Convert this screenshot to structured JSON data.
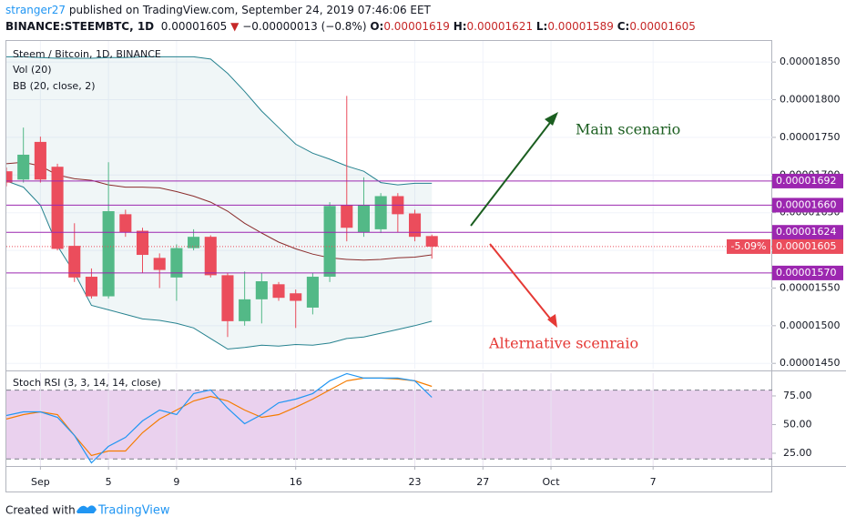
{
  "header": {
    "author": "stranger27",
    "published": " published on TradingView.com, September 24, 2019 07:46:06 EET",
    "symbol": "BINANCE:STEEMBTC, 1D",
    "price": "0.00001605",
    "arrow": "▼",
    "change": "−0.00000013 (−0.8%)",
    "o_label": "O:",
    "o": "0.00001619",
    "h_label": "H:",
    "h": "0.00001621",
    "l_label": "L:",
    "l": "0.00001589",
    "c_label": "C:",
    "c": "0.00001605"
  },
  "chart_data": [
    {
      "type": "candlestick",
      "title": "Steem / Bitcoin, 1D, BINANCE",
      "indicators": [
        "Vol (20)",
        "BB (20, close, 2)"
      ],
      "x": [
        "2019-08-30",
        "2019-08-31",
        "2019-09-01",
        "2019-09-02",
        "2019-09-03",
        "2019-09-04",
        "2019-09-05",
        "2019-09-06",
        "2019-09-07",
        "2019-09-08",
        "2019-09-09",
        "2019-09-10",
        "2019-09-11",
        "2019-09-12",
        "2019-09-13",
        "2019-09-14",
        "2019-09-15",
        "2019-09-16",
        "2019-09-17",
        "2019-09-18",
        "2019-09-19",
        "2019-09-20",
        "2019-09-21",
        "2019-09-22",
        "2019-09-23",
        "2019-09-24"
      ],
      "open": [
        1.705e-05,
        1.694e-05,
        1.744e-05,
        1.711e-05,
        1.606e-05,
        1.565e-05,
        1.539e-05,
        1.648e-05,
        1.626e-05,
        1.59e-05,
        1.564e-05,
        1.603e-05,
        1.618e-05,
        1.567e-05,
        1.506e-05,
        1.535e-05,
        1.555e-05,
        1.543e-05,
        1.524e-05,
        1.565e-05,
        1.66e-05,
        1.624e-05,
        1.628e-05,
        1.672e-05,
        1.649e-05,
        1.619e-05
      ],
      "high": [
        1.71e-05,
        1.763e-05,
        1.751e-05,
        1.715e-05,
        1.636e-05,
        1.576e-05,
        1.717e-05,
        1.654e-05,
        1.63e-05,
        1.596e-05,
        1.608e-05,
        1.628e-05,
        1.62e-05,
        1.57e-05,
        1.572e-05,
        1.57e-05,
        1.558e-05,
        1.548e-05,
        1.57e-05,
        1.664e-05,
        1.805e-05,
        1.697e-05,
        1.676e-05,
        1.676e-05,
        1.654e-05,
        1.621e-05
      ],
      "low": [
        1.685e-05,
        1.69e-05,
        1.69e-05,
        1.6e-05,
        1.558e-05,
        1.536e-05,
        1.536e-05,
        1.618e-05,
        1.57e-05,
        1.55e-05,
        1.533e-05,
        1.6e-05,
        1.564e-05,
        1.485e-05,
        1.5e-05,
        1.503e-05,
        1.533e-05,
        1.497e-05,
        1.515e-05,
        1.558e-05,
        1.612e-05,
        1.618e-05,
        1.623e-05,
        1.624e-05,
        1.612e-05,
        1.589e-05
      ],
      "close": [
        1.69e-05,
        1.727e-05,
        1.694e-05,
        1.602e-05,
        1.564e-05,
        1.539e-05,
        1.652e-05,
        1.624e-05,
        1.594e-05,
        1.574e-05,
        1.603e-05,
        1.618e-05,
        1.567e-05,
        1.506e-05,
        1.535e-05,
        1.559e-05,
        1.537e-05,
        1.533e-05,
        1.565e-05,
        1.659e-05,
        1.63e-05,
        1.66e-05,
        1.672e-05,
        1.648e-05,
        1.618e-05,
        1.605e-05
      ],
      "up_color": "#53b987",
      "down_color": "#eb4d5c",
      "overlays": [
        {
          "color": "#26828f",
          "values": [
            1.857e-05,
            1.857e-05,
            1.856e-05,
            1.855e-05,
            1.855e-05,
            1.855e-05,
            1.856e-05,
            1.856e-05,
            1.857e-05,
            1.857e-05,
            1.857e-05,
            1.857e-05,
            1.854e-05,
            1.835e-05,
            1.811e-05,
            1.785e-05,
            1.763e-05,
            1.741e-05,
            1.729e-05,
            1.721e-05,
            1.712e-05,
            1.705e-05,
            1.69e-05,
            1.687e-05,
            1.689e-05,
            1.689e-05
          ]
        },
        {
          "color": "#8b2d2d",
          "values": [
            1.715e-05,
            1.717e-05,
            1.712e-05,
            1.7e-05,
            1.695e-05,
            1.693e-05,
            1.687e-05,
            1.684e-05,
            1.684e-05,
            1.683e-05,
            1.678e-05,
            1.672e-05,
            1.664e-05,
            1.652e-05,
            1.636e-05,
            1.623e-05,
            1.611e-05,
            1.602e-05,
            1.595e-05,
            1.59e-05,
            1.588e-05,
            1.587e-05,
            1.588e-05,
            1.59e-05,
            1.591e-05,
            1.594e-05
          ]
        },
        {
          "color": "#26828f",
          "values": [
            1.692e-05,
            1.684e-05,
            1.66e-05,
            1.606e-05,
            1.57e-05,
            1.527e-05,
            1.521e-05,
            1.515e-05,
            1.509e-05,
            1.507e-05,
            1.503e-05,
            1.497e-05,
            1.483e-05,
            1.469e-05,
            1.471e-05,
            1.474e-05,
            1.473e-05,
            1.475e-05,
            1.474e-05,
            1.477e-05,
            1.483e-05,
            1.485e-05,
            1.49e-05,
            1.495e-05,
            1.5e-05,
            1.506e-05
          ]
        }
      ],
      "levels": [
        1.692e-05,
        {
          "value": 1.66e-05,
          "label": "0.00001660"
        },
        1.624e-05,
        {
          "value": 1.57e-05,
          "label": "0.00001570"
        }
      ],
      "level_color": "#9c27b0",
      "last": {
        "value": 1.605e-05,
        "change": "-5.09%",
        "color": "#eb4d5c"
      },
      "annotations": [
        {
          "text": "Main scenario",
          "color": "#1b5e20"
        },
        {
          "text": "Alternative scenraio",
          "color": "#e53935"
        }
      ],
      "xlim": [
        "2019-08-30",
        "2019-10-14"
      ],
      "ylim": [
        1.443e-05,
        1.878e-05
      ],
      "yticks": [
        {
          "value": 1.85e-05,
          "label": "0.00001850"
        },
        {
          "value": 1.8e-05,
          "label": "0.00001800"
        },
        {
          "value": 1.75e-05,
          "label": "0.00001750"
        },
        {
          "value": 1.7e-05,
          "label": "0.00001700"
        },
        {
          "value": 1.65e-05,
          "label": "0.00001650"
        },
        {
          "value": 1.6e-05,
          "label": "0.00001600"
        },
        {
          "value": 1.55e-05,
          "label": "0.00001550"
        },
        {
          "value": 1.5e-05,
          "label": "0.00001500"
        },
        {
          "value": 1.45e-05,
          "label": "0.00001450"
        }
      ],
      "grid": true
    },
    {
      "type": "line",
      "title": "Stoch RSI (3, 3, 14, 14, close)",
      "x": [
        "2019-08-30",
        "2019-08-31",
        "2019-09-01",
        "2019-09-02",
        "2019-09-03",
        "2019-09-04",
        "2019-09-05",
        "2019-09-06",
        "2019-09-07",
        "2019-09-08",
        "2019-09-09",
        "2019-09-10",
        "2019-09-11",
        "2019-09-12",
        "2019-09-13",
        "2019-09-14",
        "2019-09-15",
        "2019-09-16",
        "2019-09-17",
        "2019-09-18",
        "2019-09-19",
        "2019-09-20",
        "2019-09-21",
        "2019-09-22",
        "2019-09-23",
        "2019-09-24"
      ],
      "series": [
        {
          "color": "#2196f3",
          "values": [
            57.9,
            61.1,
            61.1,
            56.3,
            40.5,
            16.7,
            31,
            38.9,
            53.2,
            62.7,
            58.7,
            77,
            80.2,
            64.3,
            50.8,
            58.7,
            69,
            72.2,
            77,
            88.1,
            94.4,
            90.5,
            90.5,
            90.5,
            88.1,
            73.8
          ]
        },
        {
          "color": "#f57c00",
          "values": [
            54.8,
            58.7,
            61.1,
            58.7,
            40.5,
            23,
            27,
            27,
            42.9,
            54.8,
            62.7,
            70.6,
            74.6,
            70.6,
            62.7,
            56.3,
            58.7,
            65.1,
            72.2,
            80.2,
            88.1,
            90.5,
            90.5,
            89.7,
            88.1,
            83.3
          ]
        }
      ],
      "band": [
        20,
        80
      ],
      "band_color": "#e1bee7",
      "xlim": [
        "2019-08-30",
        "2019-10-14"
      ],
      "xticks": [
        {
          "value": "2019-09-01",
          "label": "Sep"
        },
        {
          "value": "2019-09-05",
          "label": "5"
        },
        {
          "value": "2019-09-09",
          "label": "9"
        },
        {
          "value": "2019-09-16",
          "label": "16"
        },
        {
          "value": "2019-09-23",
          "label": "23"
        },
        {
          "value": "2019-09-27",
          "label": "27"
        },
        {
          "value": "2019-10-01",
          "label": "Oct"
        },
        {
          "value": "2019-10-07",
          "label": "7"
        }
      ],
      "ylim": [
        13.9,
        94.8
      ],
      "yticks": [
        {
          "value": 75,
          "label": "75.00"
        },
        {
          "value": 50,
          "label": "50.00"
        },
        {
          "value": 25,
          "label": "25.00"
        }
      ],
      "grid": true
    }
  ],
  "footer": {
    "created": "Created with",
    "brand": "TradingView"
  }
}
